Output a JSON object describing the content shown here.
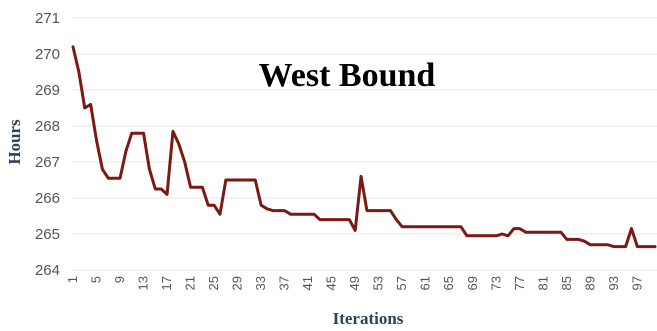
{
  "chart_data": {
    "type": "line",
    "title": "West Bound",
    "xlabel": "Iterations",
    "ylabel": "Hours",
    "ylim": [
      264,
      271
    ],
    "yticks": [
      264,
      265,
      266,
      267,
      268,
      269,
      270,
      271
    ],
    "xlim": [
      1,
      100
    ],
    "xticks": [
      1,
      5,
      9,
      13,
      17,
      21,
      25,
      29,
      33,
      37,
      41,
      45,
      49,
      53,
      57,
      61,
      65,
      69,
      73,
      77,
      81,
      85,
      89,
      93,
      97
    ],
    "grid": true,
    "legend": "none",
    "line_color": "#7b1a14",
    "series": [
      {
        "points": [
          [
            1,
            270.2
          ],
          [
            2,
            269.5
          ],
          [
            3,
            268.5
          ],
          [
            4,
            268.6
          ],
          [
            5,
            267.6
          ],
          [
            6,
            266.8
          ],
          [
            7,
            266.55
          ],
          [
            8,
            266.55
          ],
          [
            9,
            266.55
          ],
          [
            10,
            267.3
          ],
          [
            11,
            267.8
          ],
          [
            12,
            267.8
          ],
          [
            13,
            267.8
          ],
          [
            14,
            266.8
          ],
          [
            15,
            266.25
          ],
          [
            16,
            266.25
          ],
          [
            17,
            266.1
          ],
          [
            18,
            267.85
          ],
          [
            19,
            267.5
          ],
          [
            20,
            267.0
          ],
          [
            21,
            266.3
          ],
          [
            22,
            266.3
          ],
          [
            23,
            266.3
          ],
          [
            24,
            265.8
          ],
          [
            25,
            265.8
          ],
          [
            26,
            265.55
          ],
          [
            27,
            266.5
          ],
          [
            28,
            266.5
          ],
          [
            29,
            266.5
          ],
          [
            30,
            266.5
          ],
          [
            31,
            266.5
          ],
          [
            32,
            266.5
          ],
          [
            33,
            265.8
          ],
          [
            34,
            265.7
          ],
          [
            35,
            265.65
          ],
          [
            36,
            265.65
          ],
          [
            37,
            265.65
          ],
          [
            38,
            265.55
          ],
          [
            39,
            265.55
          ],
          [
            40,
            265.55
          ],
          [
            41,
            265.55
          ],
          [
            42,
            265.55
          ],
          [
            43,
            265.4
          ],
          [
            44,
            265.4
          ],
          [
            45,
            265.4
          ],
          [
            46,
            265.4
          ],
          [
            47,
            265.4
          ],
          [
            48,
            265.4
          ],
          [
            49,
            265.1
          ],
          [
            50,
            266.6
          ],
          [
            51,
            265.65
          ],
          [
            52,
            265.65
          ],
          [
            53,
            265.65
          ],
          [
            54,
            265.65
          ],
          [
            55,
            265.65
          ],
          [
            56,
            265.4
          ],
          [
            57,
            265.2
          ],
          [
            58,
            265.2
          ],
          [
            59,
            265.2
          ],
          [
            60,
            265.2
          ],
          [
            61,
            265.2
          ],
          [
            62,
            265.2
          ],
          [
            63,
            265.2
          ],
          [
            64,
            265.2
          ],
          [
            65,
            265.2
          ],
          [
            66,
            265.2
          ],
          [
            67,
            265.2
          ],
          [
            68,
            264.95
          ],
          [
            69,
            264.95
          ],
          [
            70,
            264.95
          ],
          [
            71,
            264.95
          ],
          [
            72,
            264.95
          ],
          [
            73,
            264.95
          ],
          [
            74,
            265.0
          ],
          [
            75,
            264.95
          ],
          [
            76,
            265.15
          ],
          [
            77,
            265.15
          ],
          [
            78,
            265.05
          ],
          [
            79,
            265.05
          ],
          [
            80,
            265.05
          ],
          [
            81,
            265.05
          ],
          [
            82,
            265.05
          ],
          [
            83,
            265.05
          ],
          [
            84,
            265.05
          ],
          [
            85,
            264.85
          ],
          [
            86,
            264.85
          ],
          [
            87,
            264.85
          ],
          [
            88,
            264.8
          ],
          [
            89,
            264.7
          ],
          [
            90,
            264.7
          ],
          [
            91,
            264.7
          ],
          [
            92,
            264.7
          ],
          [
            93,
            264.65
          ],
          [
            94,
            264.65
          ],
          [
            95,
            264.65
          ],
          [
            96,
            265.15
          ],
          [
            97,
            264.65
          ],
          [
            98,
            264.65
          ],
          [
            99,
            264.65
          ],
          [
            100,
            264.65
          ]
        ]
      }
    ]
  }
}
